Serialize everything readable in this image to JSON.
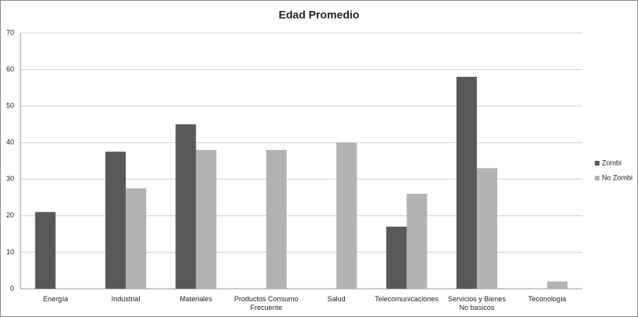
{
  "chart_data": {
    "type": "bar",
    "title": "Edad Promedio",
    "categories": [
      "Energía",
      "Industrial",
      "Materiales",
      "Productos Consumo Frecuente",
      "Salud",
      "Telecomunicaciones",
      "Servicios y Bienes No basicos",
      "Teconologia"
    ],
    "series": [
      {
        "name": "Zombi",
        "color": "#595959",
        "values": [
          21,
          37.5,
          45,
          null,
          null,
          17,
          58,
          null
        ]
      },
      {
        "name": "No Zombi",
        "color": "#b3b3b3",
        "values": [
          null,
          27.5,
          38,
          38,
          40,
          26,
          33,
          2
        ]
      }
    ],
    "ylim": [
      0,
      70
    ],
    "yticks": [
      0,
      10,
      20,
      30,
      40,
      50,
      60,
      70
    ],
    "grid": true,
    "legend": "right"
  }
}
